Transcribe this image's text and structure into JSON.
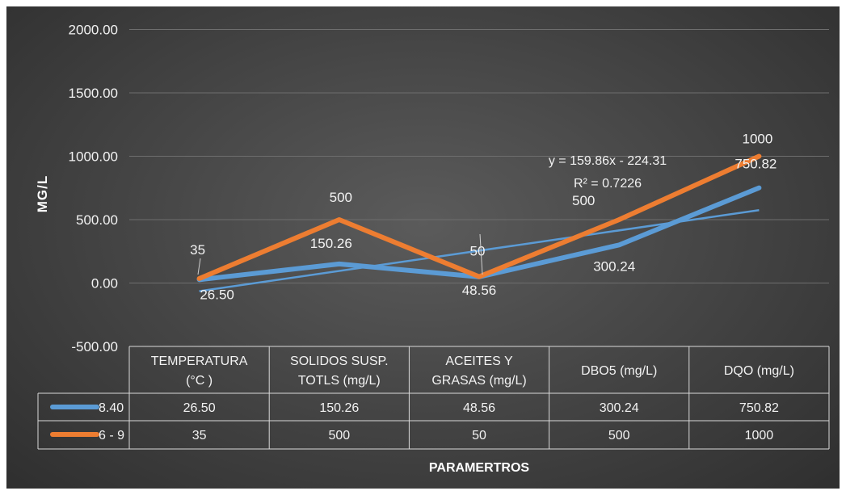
{
  "chart_data": {
    "type": "line",
    "ylabel": "MG/L",
    "xlabel": "PARAMERTROS",
    "ylim": [
      -500,
      2000
    ],
    "yticks": [
      "2000.00",
      "1500.00",
      "1000.00",
      "500.00",
      "0.00",
      "-500.00"
    ],
    "ytick_values": [
      2000,
      1500,
      1000,
      500,
      0,
      -500
    ],
    "grid": true,
    "categories": [
      [
        "TEMPERATURA",
        "(°C )"
      ],
      [
        "SOLIDOS  SUSP.",
        "TOTLS (mg/L)"
      ],
      [
        "ACEITES Y",
        "GRASAS (mg/L)"
      ],
      [
        "DBO5 (mg/L)"
      ],
      [
        "DQO (mg/L)"
      ]
    ],
    "series": [
      {
        "name": "8.40",
        "color": "#5b9bd5",
        "values": [
          26.5,
          150.26,
          48.56,
          300.24,
          750.82
        ],
        "labels": [
          "26.50",
          "150.26",
          "48.56",
          "300.24",
          "750.82"
        ],
        "table": [
          "26.50",
          "150.26",
          "48.56",
          "300.24",
          "750.82"
        ]
      },
      {
        "name": "6 - 9",
        "color": "#ed7d31",
        "values": [
          35,
          500,
          50,
          500,
          1000
        ],
        "labels": [
          "35",
          "500",
          "50",
          "500",
          "1000"
        ],
        "table": [
          "35",
          "500",
          "50",
          "500",
          "1000"
        ]
      }
    ],
    "trendline": {
      "series": "8.40",
      "slope": 159.86,
      "intercept": -224.31,
      "equation": "y = 159.86x - 224.31",
      "r2": "R² = 0.7226",
      "color": "#5b9bd5"
    },
    "legend": "data-table"
  }
}
